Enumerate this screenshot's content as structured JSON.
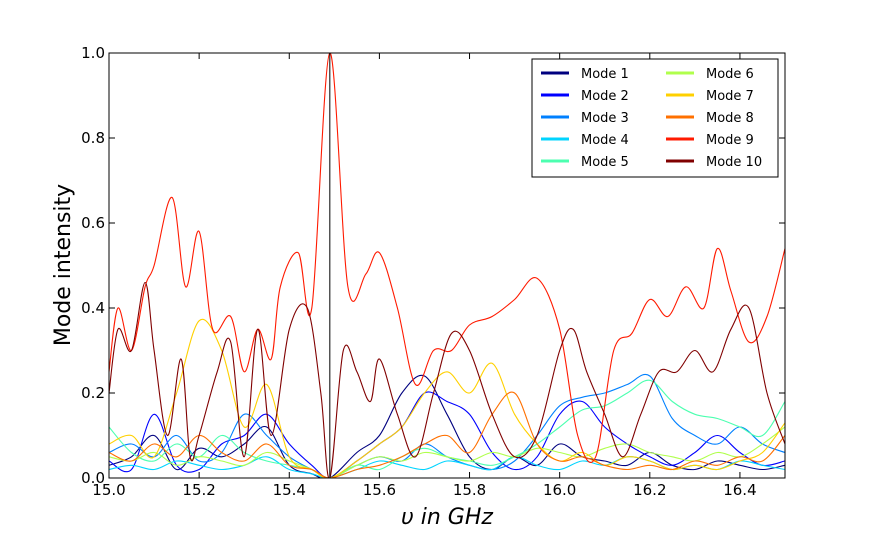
{
  "chart_data": {
    "type": "line",
    "title": "",
    "xlabel": "υ in GHz",
    "ylabel": "Mode intensity",
    "xlim": [
      15.0,
      16.5
    ],
    "ylim": [
      0.0,
      1.0
    ],
    "x_ticks": [
      "15.0",
      "15.2",
      "15.4",
      "15.6",
      "15.8",
      "16.0",
      "16.2",
      "16.4"
    ],
    "y_ticks": [
      "0.0",
      "0.2",
      "0.4",
      "0.6",
      "0.8",
      "1.0"
    ],
    "grid": false,
    "legend_position": "top-right",
    "legend_columns": 2,
    "vline_x": 15.49,
    "series": [
      {
        "name": "Mode 1",
        "color": "#00007f",
        "x": [
          15.0,
          15.05,
          15.1,
          15.15,
          15.2,
          15.25,
          15.3,
          15.35,
          15.4,
          15.45,
          15.49,
          15.55,
          15.6,
          15.65,
          15.7,
          15.75,
          15.8,
          15.85,
          15.9,
          15.95,
          16.0,
          16.05,
          16.1,
          16.15,
          16.2,
          16.25,
          16.3,
          16.35,
          16.4,
          16.45,
          16.5
        ],
        "y": [
          0.03,
          0.05,
          0.1,
          0.02,
          0.07,
          0.05,
          0.08,
          0.12,
          0.03,
          0.01,
          0.0,
          0.06,
          0.1,
          0.2,
          0.24,
          0.15,
          0.05,
          0.02,
          0.05,
          0.03,
          0.08,
          0.05,
          0.04,
          0.03,
          0.06,
          0.03,
          0.02,
          0.04,
          0.03,
          0.02,
          0.03
        ]
      },
      {
        "name": "Mode 2",
        "color": "#0000ff",
        "x": [
          15.0,
          15.05,
          15.1,
          15.15,
          15.2,
          15.25,
          15.3,
          15.35,
          15.4,
          15.45,
          15.49,
          15.55,
          15.6,
          15.65,
          15.7,
          15.75,
          15.8,
          15.85,
          15.9,
          15.95,
          16.0,
          16.05,
          16.1,
          16.15,
          16.2,
          16.25,
          16.3,
          16.35,
          16.4,
          16.45,
          16.5
        ],
        "y": [
          0.04,
          0.02,
          0.15,
          0.03,
          0.02,
          0.08,
          0.1,
          0.15,
          0.08,
          0.03,
          0.0,
          0.04,
          0.08,
          0.12,
          0.2,
          0.18,
          0.15,
          0.06,
          0.02,
          0.05,
          0.15,
          0.18,
          0.12,
          0.08,
          0.05,
          0.03,
          0.06,
          0.1,
          0.06,
          0.03,
          0.04
        ]
      },
      {
        "name": "Mode 3",
        "color": "#0080ff",
        "x": [
          15.0,
          15.05,
          15.1,
          15.15,
          15.2,
          15.25,
          15.3,
          15.35,
          15.4,
          15.45,
          15.49,
          15.55,
          15.6,
          15.65,
          15.7,
          15.75,
          15.8,
          15.85,
          15.9,
          15.95,
          16.0,
          16.05,
          16.1,
          16.15,
          16.2,
          16.25,
          16.3,
          16.35,
          16.4,
          16.45,
          16.5
        ],
        "y": [
          0.06,
          0.08,
          0.05,
          0.1,
          0.04,
          0.06,
          0.15,
          0.1,
          0.05,
          0.02,
          0.0,
          0.03,
          0.05,
          0.04,
          0.08,
          0.05,
          0.03,
          0.02,
          0.04,
          0.1,
          0.17,
          0.19,
          0.2,
          0.22,
          0.24,
          0.14,
          0.1,
          0.08,
          0.12,
          0.08,
          0.06
        ]
      },
      {
        "name": "Mode 4",
        "color": "#00d4ff",
        "x": [
          15.0,
          15.05,
          15.1,
          15.15,
          15.2,
          15.25,
          15.3,
          15.35,
          15.4,
          15.45,
          15.49,
          15.55,
          15.6,
          15.65,
          15.7,
          15.75,
          15.8,
          15.85,
          15.9,
          15.95,
          16.0,
          16.05,
          16.1,
          16.15,
          16.2,
          16.25,
          16.3,
          16.35,
          16.4,
          16.45,
          16.5
        ],
        "y": [
          0.02,
          0.03,
          0.02,
          0.04,
          0.03,
          0.02,
          0.03,
          0.05,
          0.02,
          0.01,
          0.0,
          0.02,
          0.04,
          0.03,
          0.02,
          0.04,
          0.03,
          0.02,
          0.05,
          0.03,
          0.02,
          0.04,
          0.03,
          0.05,
          0.04,
          0.02,
          0.03,
          0.02,
          0.04,
          0.03,
          0.02
        ]
      },
      {
        "name": "Mode 5",
        "color": "#4cffb0",
        "x": [
          15.0,
          15.05,
          15.1,
          15.15,
          15.2,
          15.25,
          15.3,
          15.35,
          15.4,
          15.45,
          15.49,
          15.55,
          15.6,
          15.65,
          15.7,
          15.75,
          15.8,
          15.85,
          15.9,
          15.95,
          16.0,
          16.05,
          16.1,
          16.15,
          16.2,
          16.25,
          16.3,
          16.35,
          16.4,
          16.45,
          16.5
        ],
        "y": [
          0.12,
          0.06,
          0.04,
          0.08,
          0.05,
          0.1,
          0.06,
          0.04,
          0.03,
          0.02,
          0.0,
          0.03,
          0.02,
          0.05,
          0.07,
          0.05,
          0.04,
          0.03,
          0.05,
          0.08,
          0.12,
          0.16,
          0.17,
          0.2,
          0.23,
          0.18,
          0.15,
          0.14,
          0.12,
          0.1,
          0.18
        ]
      },
      {
        "name": "Mode 6",
        "color": "#b0ff4c",
        "x": [
          15.0,
          15.05,
          15.1,
          15.15,
          15.2,
          15.25,
          15.3,
          15.35,
          15.4,
          15.45,
          15.49,
          15.55,
          15.6,
          15.65,
          15.7,
          15.75,
          15.8,
          15.85,
          15.9,
          15.95,
          16.0,
          16.05,
          16.1,
          16.15,
          16.2,
          16.25,
          16.3,
          16.35,
          16.4,
          16.45,
          16.5
        ],
        "y": [
          0.05,
          0.04,
          0.06,
          0.03,
          0.05,
          0.04,
          0.03,
          0.06,
          0.04,
          0.02,
          0.0,
          0.03,
          0.05,
          0.04,
          0.06,
          0.05,
          0.04,
          0.06,
          0.05,
          0.07,
          0.06,
          0.05,
          0.07,
          0.08,
          0.06,
          0.05,
          0.04,
          0.06,
          0.05,
          0.08,
          0.12
        ]
      },
      {
        "name": "Mode 7",
        "color": "#ffd000",
        "x": [
          15.0,
          15.05,
          15.1,
          15.15,
          15.2,
          15.25,
          15.3,
          15.35,
          15.4,
          15.45,
          15.49,
          15.55,
          15.6,
          15.65,
          15.7,
          15.75,
          15.8,
          15.85,
          15.9,
          15.95,
          16.0,
          16.05,
          16.1,
          16.15,
          16.2,
          16.25,
          16.3,
          16.35,
          16.4,
          16.45,
          16.5
        ],
        "y": [
          0.08,
          0.1,
          0.05,
          0.2,
          0.37,
          0.3,
          0.12,
          0.22,
          0.05,
          0.02,
          0.0,
          0.04,
          0.08,
          0.12,
          0.2,
          0.25,
          0.2,
          0.27,
          0.15,
          0.08,
          0.04,
          0.06,
          0.03,
          0.05,
          0.04,
          0.02,
          0.03,
          0.02,
          0.04,
          0.06,
          0.13
        ]
      },
      {
        "name": "Mode 8",
        "color": "#ff7000",
        "x": [
          15.0,
          15.05,
          15.1,
          15.15,
          15.2,
          15.25,
          15.3,
          15.35,
          15.4,
          15.45,
          15.49,
          15.55,
          15.6,
          15.65,
          15.7,
          15.75,
          15.8,
          15.85,
          15.9,
          15.95,
          16.0,
          16.05,
          16.1,
          16.15,
          16.2,
          16.25,
          16.3,
          16.35,
          16.4,
          16.45,
          16.5
        ],
        "y": [
          0.06,
          0.04,
          0.08,
          0.05,
          0.1,
          0.06,
          0.04,
          0.08,
          0.03,
          0.02,
          0.0,
          0.02,
          0.03,
          0.05,
          0.08,
          0.1,
          0.06,
          0.15,
          0.2,
          0.08,
          0.04,
          0.05,
          0.03,
          0.02,
          0.03,
          0.02,
          0.04,
          0.03,
          0.05,
          0.04,
          0.1
        ]
      },
      {
        "name": "Mode 9",
        "color": "#ff1a00",
        "x": [
          15.0,
          15.02,
          15.05,
          15.08,
          15.1,
          15.14,
          15.17,
          15.2,
          15.23,
          15.27,
          15.3,
          15.33,
          15.36,
          15.38,
          15.42,
          15.45,
          15.49,
          15.53,
          15.57,
          15.6,
          15.64,
          15.68,
          15.72,
          15.76,
          15.8,
          15.85,
          15.9,
          15.95,
          16.0,
          16.04,
          16.08,
          16.12,
          16.16,
          16.2,
          16.24,
          16.28,
          16.32,
          16.35,
          16.38,
          16.42,
          16.46,
          16.5
        ],
        "y": [
          0.25,
          0.4,
          0.3,
          0.45,
          0.5,
          0.66,
          0.45,
          0.58,
          0.35,
          0.38,
          0.25,
          0.35,
          0.28,
          0.45,
          0.53,
          0.4,
          1.0,
          0.45,
          0.48,
          0.53,
          0.4,
          0.22,
          0.3,
          0.3,
          0.36,
          0.38,
          0.42,
          0.47,
          0.35,
          0.1,
          0.05,
          0.3,
          0.34,
          0.42,
          0.38,
          0.45,
          0.4,
          0.54,
          0.44,
          0.32,
          0.38,
          0.54
        ]
      },
      {
        "name": "Mode 10",
        "color": "#800000",
        "x": [
          15.0,
          15.02,
          15.05,
          15.08,
          15.1,
          15.13,
          15.16,
          15.18,
          15.2,
          15.24,
          15.27,
          15.3,
          15.33,
          15.36,
          15.4,
          15.44,
          15.47,
          15.49,
          15.52,
          15.55,
          15.58,
          15.6,
          15.64,
          15.68,
          15.72,
          15.76,
          15.8,
          15.85,
          15.9,
          15.95,
          16.0,
          16.03,
          16.06,
          16.1,
          16.14,
          16.18,
          16.22,
          16.26,
          16.3,
          16.34,
          16.38,
          16.42,
          16.46,
          16.5
        ],
        "y": [
          0.2,
          0.35,
          0.3,
          0.46,
          0.3,
          0.1,
          0.28,
          0.05,
          0.1,
          0.25,
          0.32,
          0.05,
          0.35,
          0.1,
          0.35,
          0.4,
          0.2,
          0.0,
          0.3,
          0.25,
          0.18,
          0.28,
          0.15,
          0.05,
          0.2,
          0.34,
          0.3,
          0.15,
          0.05,
          0.1,
          0.3,
          0.35,
          0.25,
          0.15,
          0.05,
          0.15,
          0.25,
          0.25,
          0.3,
          0.25,
          0.35,
          0.4,
          0.2,
          0.08
        ]
      }
    ]
  }
}
